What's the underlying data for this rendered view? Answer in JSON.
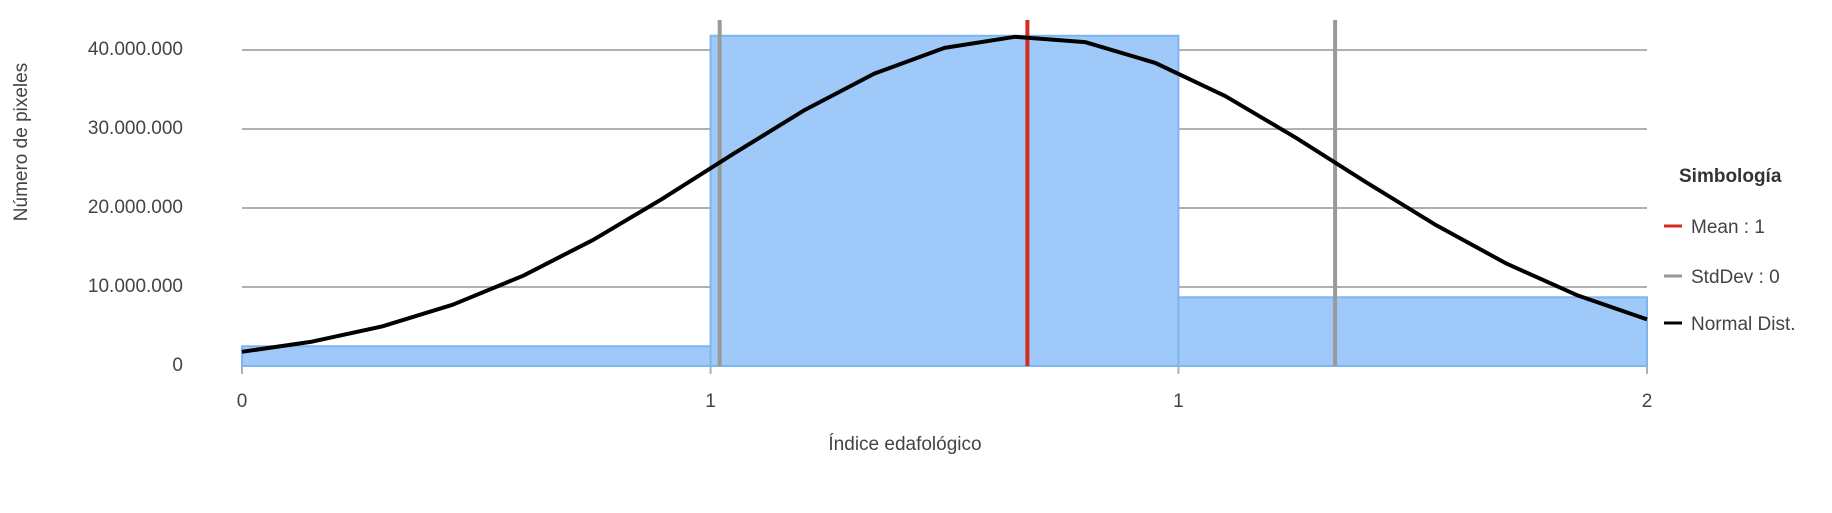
{
  "chart_data": {
    "type": "histogram",
    "xlabel": "Índice edafológico",
    "ylabel": "Número de pixeles",
    "bins": [
      0,
      0.667,
      1.333,
      2
    ],
    "values": [
      2500000,
      41800000,
      8700000
    ],
    "color": "#9ec9f8",
    "xlim": [
      0,
      2
    ],
    "xticks": [
      0,
      {
        "value": 0.667,
        "label": "1"
      },
      {
        "value": 1.333,
        "label": "1"
      },
      2
    ],
    "ylim": [
      0,
      44000000
    ],
    "yticks": [
      0,
      {
        "value": 10000000,
        "label": "10.000.000"
      },
      {
        "value": 20000000,
        "label": "20.000.000"
      },
      {
        "value": 30000000,
        "label": "30.000.000"
      },
      {
        "value": 40000000,
        "label": "40.000.000"
      }
    ],
    "grid": true,
    "legend_title": "Simbología",
    "mean": {
      "name": "Mean : 1",
      "color": "#d62c1e",
      "value": 1.118
    },
    "stddev": {
      "name": "StdDev : 0",
      "color": "#9a9a9a",
      "values": [
        0.68,
        1.556
      ]
    },
    "normal": {
      "name": "Normal Dist.",
      "color": "#000000",
      "x": [
        0,
        0.1,
        0.2,
        0.3,
        0.4,
        0.5,
        0.6,
        0.7,
        0.8,
        0.9,
        1.0,
        1.1,
        1.2,
        1.3,
        1.4,
        1.5,
        1.6,
        1.7,
        1.8,
        1.9,
        2.0
      ],
      "values": [
        1800000,
        3090000,
        5020000,
        7760000,
        11420000,
        15970000,
        21250000,
        26880000,
        32350000,
        37010000,
        40270000,
        41670000,
        41000000,
        38370000,
        34150000,
        28900000,
        23260000,
        17810000,
        12960000,
        8970000,
        5900000
      ]
    }
  }
}
